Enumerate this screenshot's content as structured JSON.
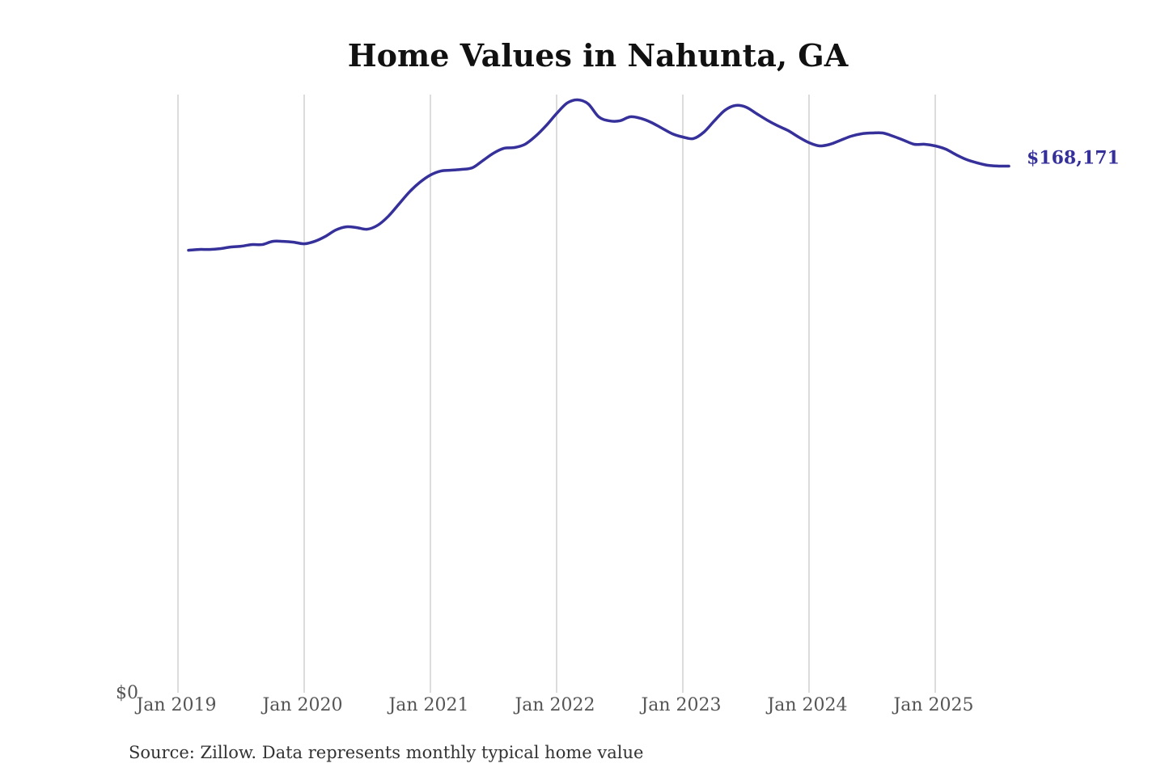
{
  "chart_data": {
    "type": "line",
    "title": "Home Values in Nahunta, GA",
    "xlabel": "",
    "ylabel": "",
    "source": "Source: Zillow. Data represents monthly typical home value",
    "ylim": [
      0,
      191000
    ],
    "y_tick_labels": [
      {
        "value": 0,
        "label": "$0"
      }
    ],
    "x_tick_labels": [
      {
        "date": "2019-01",
        "label": "Jan 2019"
      },
      {
        "date": "2020-01",
        "label": "Jan 2020"
      },
      {
        "date": "2021-01",
        "label": "Jan 2021"
      },
      {
        "date": "2022-01",
        "label": "Jan 2022"
      },
      {
        "date": "2023-01",
        "label": "Jan 2023"
      },
      {
        "date": "2024-01",
        "label": "Jan 2024"
      },
      {
        "date": "2025-01",
        "label": "Jan 2025"
      }
    ],
    "grid": "vertical",
    "line_color": "#35309a",
    "end_label": "$168,171",
    "series": [
      {
        "x": [
          "2019-02",
          "2019-03",
          "2019-04",
          "2019-05",
          "2019-06",
          "2019-07",
          "2019-08",
          "2019-09",
          "2019-10",
          "2019-11",
          "2019-12",
          "2020-01",
          "2020-02",
          "2020-03",
          "2020-04",
          "2020-05",
          "2020-06",
          "2020-07",
          "2020-08",
          "2020-09",
          "2020-10",
          "2020-11",
          "2020-12",
          "2021-01",
          "2021-02",
          "2021-03",
          "2021-04",
          "2021-05",
          "2021-06",
          "2021-07",
          "2021-08",
          "2021-09",
          "2021-10",
          "2021-11",
          "2021-12",
          "2022-01",
          "2022-02",
          "2022-03",
          "2022-04",
          "2022-05",
          "2022-06",
          "2022-07",
          "2022-08",
          "2022-09",
          "2022-10",
          "2022-11",
          "2022-12",
          "2023-01",
          "2023-02",
          "2023-03",
          "2023-04",
          "2023-05",
          "2023-06",
          "2023-07",
          "2023-08",
          "2023-09",
          "2023-10",
          "2023-11",
          "2023-12",
          "2024-01",
          "2024-02",
          "2024-03",
          "2024-04",
          "2024-05",
          "2024-06",
          "2024-07",
          "2024-08",
          "2024-09",
          "2024-10",
          "2024-11",
          "2024-12",
          "2025-01",
          "2025-02",
          "2025-03",
          "2025-04",
          "2025-05",
          "2025-06",
          "2025-07",
          "2025-08"
        ],
        "values": [
          141290,
          141550,
          141550,
          141810,
          142320,
          142580,
          143100,
          143100,
          144130,
          144130,
          143870,
          143360,
          144130,
          145680,
          147750,
          148780,
          148520,
          148010,
          149300,
          152140,
          156010,
          159890,
          162990,
          165310,
          166600,
          166860,
          167120,
          167640,
          169960,
          172290,
          173840,
          174090,
          175130,
          177710,
          181070,
          184940,
          188300,
          189330,
          188040,
          183910,
          182620,
          182620,
          183910,
          183390,
          182100,
          180290,
          178490,
          177450,
          176940,
          179000,
          182620,
          185980,
          187520,
          187010,
          184940,
          182880,
          181070,
          179520,
          177450,
          175640,
          174610,
          175130,
          176420,
          177710,
          178490,
          178740,
          178740,
          177710,
          176420,
          175130,
          175130,
          174610,
          173580,
          171770,
          170220,
          169190,
          168410,
          168171,
          168171
        ]
      }
    ]
  }
}
